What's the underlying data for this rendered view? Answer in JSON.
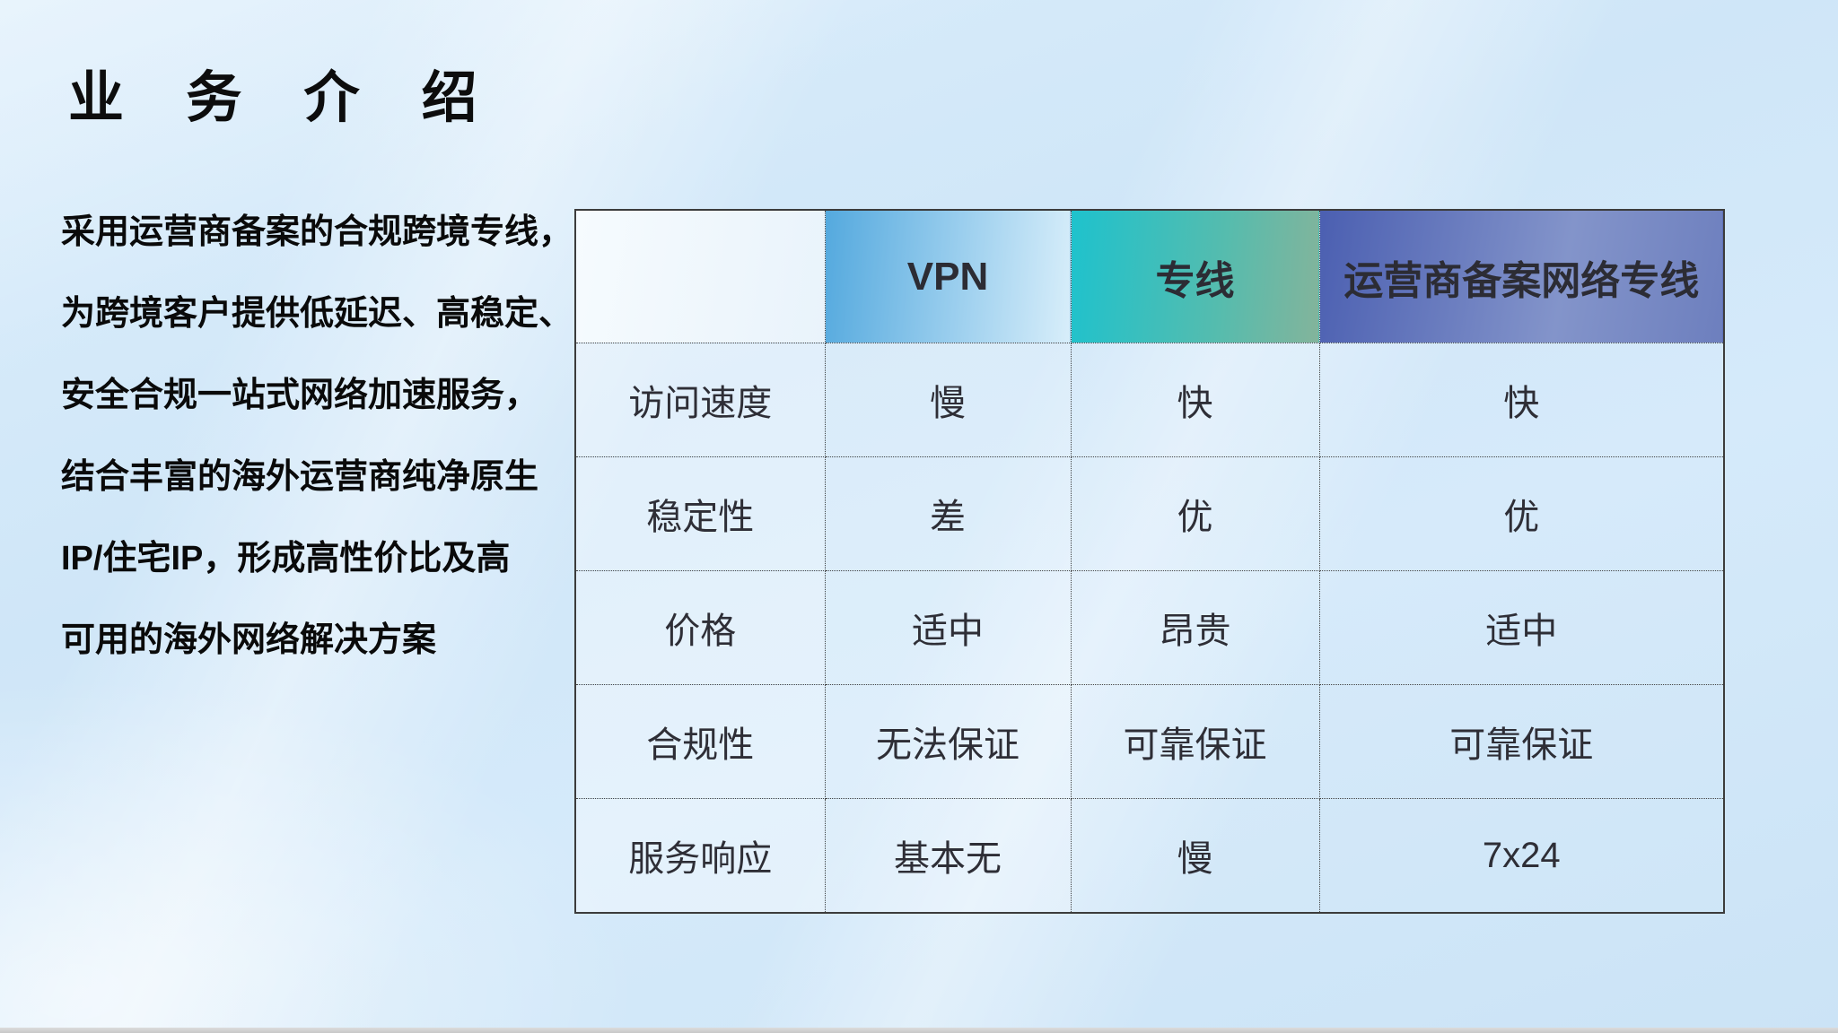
{
  "slide": {
    "title": "业 务 介 绍",
    "description_lines": [
      "采用运营商备案的合规跨境专线，",
      "为跨境客户提供低延迟、高稳定、",
      "安全合规一站式网络加速服务，",
      "结合丰富的海外运营商纯净原生",
      "IP/住宅IP，形成高性价比及高",
      "可用的海外网络解决方案"
    ]
  },
  "comparison_table": {
    "columns": [
      "",
      "VPN",
      "专线",
      "运营商备案网络专线"
    ],
    "row_labels": [
      "访问速度",
      "稳定性",
      "价格",
      "合规性",
      "服务响应"
    ],
    "rows": [
      {
        "label": "访问速度",
        "values": [
          "慢",
          "快",
          "快"
        ]
      },
      {
        "label": "稳定性",
        "values": [
          "差",
          "优",
          "优"
        ]
      },
      {
        "label": "价格",
        "values": [
          "适中",
          "昂贵",
          "适中"
        ]
      },
      {
        "label": "合规性",
        "values": [
          "无法保证",
          "可靠保证",
          "可靠保证"
        ]
      },
      {
        "label": "服务响应",
        "values": [
          "基本无",
          "慢",
          "7x24"
        ]
      }
    ],
    "header_colors": {
      "vpn_gradient": [
        "#54a9de",
        "#d8eefa"
      ],
      "dedicated_line_gradient": [
        "#1ec2cd",
        "#83b49b"
      ],
      "carrier_filed_gradient": [
        "#4b5fb1",
        "#6d7fbe"
      ]
    }
  },
  "colors": {
    "background": "#cfe6f8",
    "table_border": "#3c3c3c",
    "title_text": "#0d0d0d",
    "bottom_bar": "#cfcfcf"
  }
}
